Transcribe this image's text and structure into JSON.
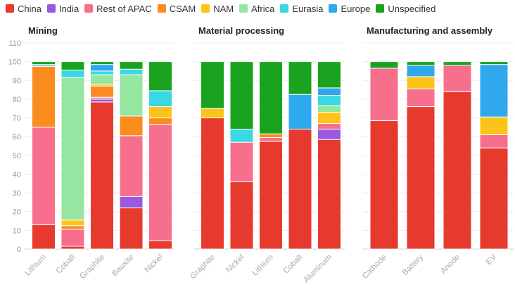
{
  "legend": [
    {
      "name": "China",
      "color": "#e63a2e"
    },
    {
      "name": "India",
      "color": "#9b59e0"
    },
    {
      "name": "Rest of APAC",
      "color": "#f76f8c"
    },
    {
      "name": "CSAM",
      "color": "#fb8c1e"
    },
    {
      "name": "NAM",
      "color": "#fcc419"
    },
    {
      "name": "Africa",
      "color": "#94e6a0"
    },
    {
      "name": "Eurasia",
      "color": "#39d8e2"
    },
    {
      "name": "Europe",
      "color": "#2ea9ee"
    },
    {
      "name": "Unspecified",
      "color": "#19a31e"
    }
  ],
  "chart_data": [
    {
      "type": "bar",
      "stacked": true,
      "title": "Mining",
      "ylim": [
        0,
        110
      ],
      "yticks": [
        0,
        10,
        20,
        30,
        40,
        50,
        60,
        70,
        80,
        90,
        100,
        110
      ],
      "categories": [
        "Lithium",
        "Cobalt",
        "Graphite",
        "Bauxite",
        "Nickel"
      ],
      "series": [
        {
          "name": "China",
          "values": [
            13,
            1.5,
            78.5,
            22,
            4.5
          ]
        },
        {
          "name": "India",
          "values": [
            0,
            0,
            1.5,
            6,
            0
          ]
        },
        {
          "name": "Rest of APAC",
          "values": [
            52,
            9,
            1,
            32.5,
            62
          ]
        },
        {
          "name": "CSAM",
          "values": [
            32.5,
            2,
            6,
            10.5,
            3.5
          ]
        },
        {
          "name": "NAM",
          "values": [
            0,
            3,
            1,
            0,
            6
          ]
        },
        {
          "name": "Africa",
          "values": [
            0,
            76,
            5,
            22,
            0
          ]
        },
        {
          "name": "Eurasia",
          "values": [
            1,
            4,
            2,
            3,
            8.5
          ]
        },
        {
          "name": "Europe",
          "values": [
            0,
            0,
            3.5,
            0,
            0
          ]
        },
        {
          "name": "Unspecified",
          "values": [
            1.5,
            4.5,
            1.5,
            4,
            15.5
          ]
        }
      ]
    },
    {
      "type": "bar",
      "stacked": true,
      "title": "Material processing",
      "ylim": [
        0,
        110
      ],
      "categories": [
        "Graphite",
        "Nickel",
        "Lithium",
        "Cobalt",
        "Aluminum"
      ],
      "series": [
        {
          "name": "China",
          "values": [
            70,
            36,
            57.5,
            64,
            58.5
          ]
        },
        {
          "name": "India",
          "values": [
            0,
            0,
            0,
            0,
            5.5
          ]
        },
        {
          "name": "Rest of APAC",
          "values": [
            0,
            21,
            2,
            0,
            3
          ]
        },
        {
          "name": "CSAM",
          "values": [
            0,
            0,
            2,
            0,
            0
          ]
        },
        {
          "name": "NAM",
          "values": [
            5,
            0,
            0,
            0,
            6
          ]
        },
        {
          "name": "Africa",
          "values": [
            0,
            0,
            0,
            0,
            3.5
          ]
        },
        {
          "name": "Eurasia",
          "values": [
            0,
            7,
            0,
            0,
            5.5
          ]
        },
        {
          "name": "Europe",
          "values": [
            0,
            0,
            0,
            18.5,
            4
          ]
        },
        {
          "name": "Unspecified",
          "values": [
            25,
            36,
            38.5,
            17.5,
            14
          ]
        }
      ]
    },
    {
      "type": "bar",
      "stacked": true,
      "title": "Manufacturing and assembly",
      "ylim": [
        0,
        110
      ],
      "categories": [
        "Cathode",
        "Battery",
        "Anode",
        "EV"
      ],
      "series": [
        {
          "name": "China",
          "values": [
            68.5,
            76,
            84,
            54
          ]
        },
        {
          "name": "India",
          "values": [
            0,
            0,
            0,
            0
          ]
        },
        {
          "name": "Rest of APAC",
          "values": [
            28,
            9.5,
            14,
            7
          ]
        },
        {
          "name": "CSAM",
          "values": [
            0,
            0,
            0,
            0
          ]
        },
        {
          "name": "NAM",
          "values": [
            0,
            6.5,
            0,
            9.5
          ]
        },
        {
          "name": "Africa",
          "values": [
            0,
            0,
            0,
            0
          ]
        },
        {
          "name": "Eurasia",
          "values": [
            0,
            0,
            0,
            0
          ]
        },
        {
          "name": "Europe",
          "values": [
            0,
            6,
            0,
            28
          ]
        },
        {
          "name": "Unspecified",
          "values": [
            3.5,
            2,
            2,
            1.5
          ]
        }
      ]
    }
  ]
}
